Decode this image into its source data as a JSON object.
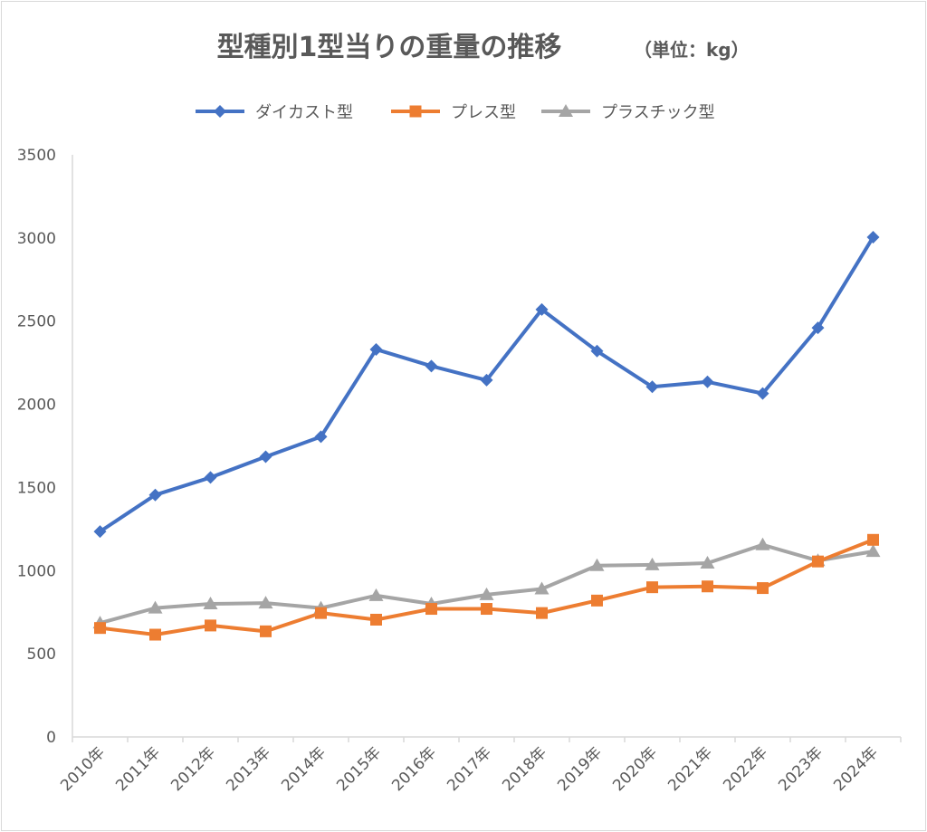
{
  "chart_data": {
    "type": "line",
    "title": "型種別1型当りの重量の推移",
    "subtitle": "（単位：kg）",
    "categories": [
      "2010年",
      "2011年",
      "2012年",
      "2013年",
      "2014年",
      "2015年",
      "2016年",
      "2017年",
      "2018年",
      "2019年",
      "2020年",
      "2021年",
      "2022年",
      "2023年",
      "2024年"
    ],
    "ylim": [
      0,
      3500
    ],
    "yticks": [
      0,
      500,
      1000,
      1500,
      2000,
      2500,
      3000,
      3500
    ],
    "grid": false,
    "legend_position": "top",
    "series": [
      {
        "name": "ダイカスト型",
        "color": "#4472C4",
        "marker": "diamond",
        "values": [
          1235,
          1455,
          1560,
          1685,
          1805,
          2330,
          2230,
          2145,
          2570,
          2320,
          2105,
          2135,
          2065,
          2460,
          3005
        ]
      },
      {
        "name": "プレス型",
        "color": "#ED7D31",
        "marker": "square",
        "values": [
          655,
          615,
          670,
          635,
          745,
          705,
          770,
          770,
          745,
          820,
          900,
          905,
          895,
          1055,
          1185
        ]
      },
      {
        "name": "プラスチック型",
        "color": "#A5A5A5",
        "marker": "triangle",
        "values": [
          685,
          775,
          800,
          805,
          775,
          850,
          800,
          855,
          890,
          1030,
          1035,
          1045,
          1155,
          1060,
          1115
        ]
      }
    ]
  }
}
